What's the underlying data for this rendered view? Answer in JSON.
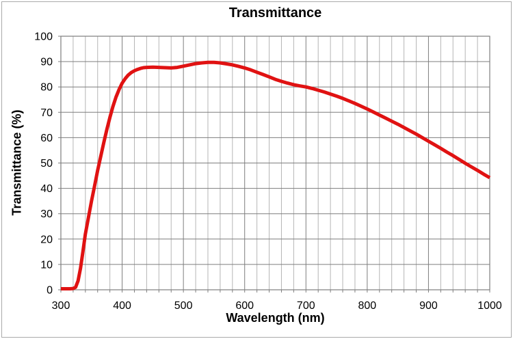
{
  "page": {
    "background_color": "#ffffff",
    "frame_border_color": "#a9a9a9"
  },
  "chart_data": {
    "type": "line",
    "title": "Transmittance",
    "xlabel": "Wavelength (nm)",
    "ylabel": "Transmittance (%)",
    "xlim": [
      300,
      1000
    ],
    "ylim": [
      0,
      100
    ],
    "x_major_tick_step": 100,
    "x_minor_tick_step": 20,
    "y_major_tick_step": 10,
    "x_tick_labels": [
      "300",
      "400",
      "500",
      "600",
      "700",
      "800",
      "900",
      "1000"
    ],
    "y_tick_labels": [
      "0",
      "10",
      "20",
      "30",
      "40",
      "50",
      "60",
      "70",
      "80",
      "90",
      "100"
    ],
    "grid": "horizontal-major + vertical-major + vertical-minor",
    "legend": "none",
    "colors": {
      "series": "#e01212",
      "grid_major": "#7d7d7d",
      "grid_minor": "#b5b5b5",
      "plot_border": "#7d7d7d",
      "tick": "#7d7d7d",
      "text": "#000000"
    },
    "series": [
      {
        "name": "transmittance",
        "color": "#e01212",
        "line_width": 5,
        "x": [
          300,
          305,
          310,
          315,
          320,
          324,
          328,
          332,
          336,
          340,
          345,
          350,
          355,
          360,
          365,
          370,
          375,
          380,
          385,
          390,
          395,
          400,
          405,
          410,
          415,
          420,
          425,
          430,
          435,
          440,
          450,
          460,
          470,
          480,
          490,
          500,
          510,
          520,
          530,
          540,
          550,
          560,
          570,
          580,
          590,
          600,
          610,
          620,
          630,
          640,
          650,
          660,
          670,
          680,
          690,
          700,
          710,
          720,
          730,
          740,
          750,
          760,
          770,
          780,
          790,
          800,
          810,
          820,
          830,
          840,
          850,
          860,
          870,
          880,
          890,
          900,
          910,
          920,
          930,
          940,
          950,
          960,
          970,
          980,
          990,
          1000
        ],
        "y": [
          0.4,
          0.4,
          0.4,
          0.4,
          0.5,
          1,
          3.5,
          8.5,
          15,
          22,
          28.5,
          35,
          41,
          47,
          52.5,
          58,
          63.2,
          68,
          72.3,
          76,
          79,
          81.5,
          83.3,
          84.7,
          85.7,
          86.4,
          86.9,
          87.3,
          87.6,
          87.7,
          87.8,
          87.7,
          87.6,
          87.5,
          87.7,
          88.2,
          88.7,
          89.2,
          89.5,
          89.7,
          89.7,
          89.5,
          89.1,
          88.7,
          88.1,
          87.5,
          86.7,
          85.8,
          84.9,
          84.0,
          83.0,
          82.2,
          81.5,
          80.9,
          80.4,
          80.0,
          79.4,
          78.7,
          78.0,
          77.2,
          76.4,
          75.5,
          74.5,
          73.5,
          72.4,
          71.3,
          70.1,
          68.9,
          67.7,
          66.5,
          65.3,
          64.0,
          62.7,
          61.4,
          60.0,
          58.6,
          57.2,
          55.8,
          54.3,
          52.9,
          51.4,
          49.9,
          48.5,
          47.1,
          45.6,
          44.2
        ]
      }
    ]
  }
}
